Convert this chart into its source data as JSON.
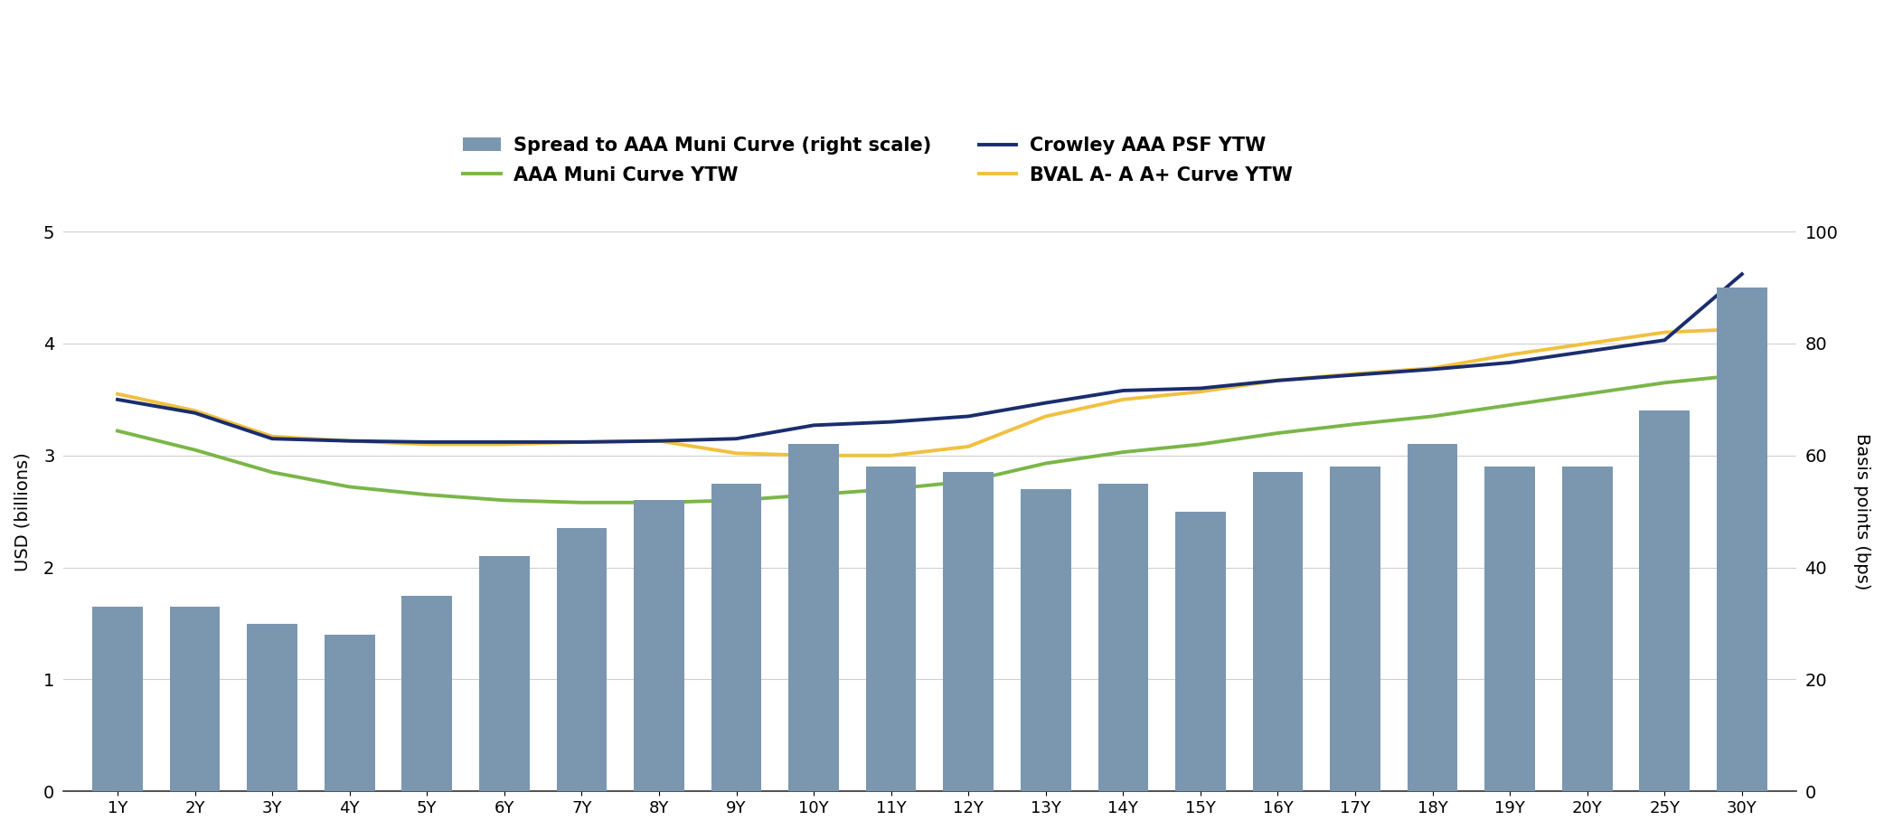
{
  "categories": [
    "1Y",
    "2Y",
    "3Y",
    "4Y",
    "5Y",
    "6Y",
    "7Y",
    "8Y",
    "9Y",
    "10Y",
    "11Y",
    "12Y",
    "13Y",
    "14Y",
    "15Y",
    "16Y",
    "17Y",
    "18Y",
    "19Y",
    "20Y",
    "25Y",
    "30Y"
  ],
  "bar_values_bps": [
    33,
    33,
    30,
    28,
    35,
    42,
    47,
    52,
    55,
    62,
    58,
    57,
    54,
    55,
    50,
    57,
    58,
    62,
    58,
    58,
    68,
    90
  ],
  "crowley_ytw": [
    3.5,
    3.38,
    3.15,
    3.13,
    3.12,
    3.12,
    3.12,
    3.13,
    3.15,
    3.27,
    3.3,
    3.35,
    3.47,
    3.58,
    3.6,
    3.67,
    3.72,
    3.77,
    3.83,
    3.93,
    4.03,
    4.62
  ],
  "aaa_curve": [
    3.22,
    3.05,
    2.85,
    2.72,
    2.65,
    2.6,
    2.58,
    2.58,
    2.6,
    2.65,
    2.7,
    2.77,
    2.93,
    3.03,
    3.1,
    3.2,
    3.28,
    3.35,
    3.45,
    3.55,
    3.65,
    3.72
  ],
  "bval_a_curve": [
    3.55,
    3.4,
    3.17,
    3.13,
    3.1,
    3.1,
    3.12,
    3.13,
    3.02,
    3.0,
    3.0,
    3.08,
    3.35,
    3.5,
    3.57,
    3.67,
    3.73,
    3.78,
    3.9,
    4.0,
    4.1,
    4.13
  ],
  "bar_color": "#7b97b0",
  "crowley_color": "#1a2d6e",
  "aaa_color": "#7ab648",
  "bval_color": "#f0c040",
  "left_ylim": [
    0,
    5
  ],
  "right_ylim": [
    0,
    100
  ],
  "left_yticks": [
    0,
    1,
    2,
    3,
    4,
    5
  ],
  "right_yticks": [
    0,
    20,
    40,
    60,
    80,
    100
  ],
  "ylabel_left": "USD (billions)",
  "ylabel_right": "Basis points (bps)",
  "background_color": "#ffffff",
  "grid_color": "#d0d0d0"
}
